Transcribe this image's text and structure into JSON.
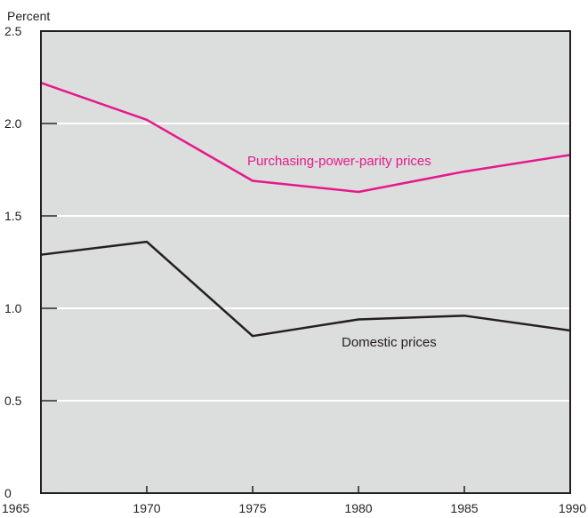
{
  "chart_data": {
    "type": "line",
    "ylabel": "Percent",
    "x": [
      1965,
      1970,
      1975,
      1980,
      1985,
      1990
    ],
    "x_tick_labels": [
      "1965",
      "1970",
      "1975",
      "1980",
      "1985",
      "1990"
    ],
    "y_tick_labels": [
      "0",
      "0.5",
      "1.0",
      "1.5",
      "2.0",
      "2.5"
    ],
    "xlim": [
      1965,
      1990
    ],
    "ylim": [
      0,
      2.5
    ],
    "grid": true,
    "series": [
      {
        "name": "Purchasing-power-parity prices",
        "color": "#e5198c",
        "values": [
          2.22,
          2.02,
          1.69,
          1.63,
          1.74,
          1.83
        ]
      },
      {
        "name": "Domestic prices",
        "color": "#231f20",
        "values": [
          1.29,
          1.36,
          0.85,
          0.94,
          0.96,
          0.88
        ]
      }
    ],
    "colors": {
      "plot_background": "#dcdddd",
      "gridline": "#ffffff",
      "axis": "#231f20"
    }
  }
}
